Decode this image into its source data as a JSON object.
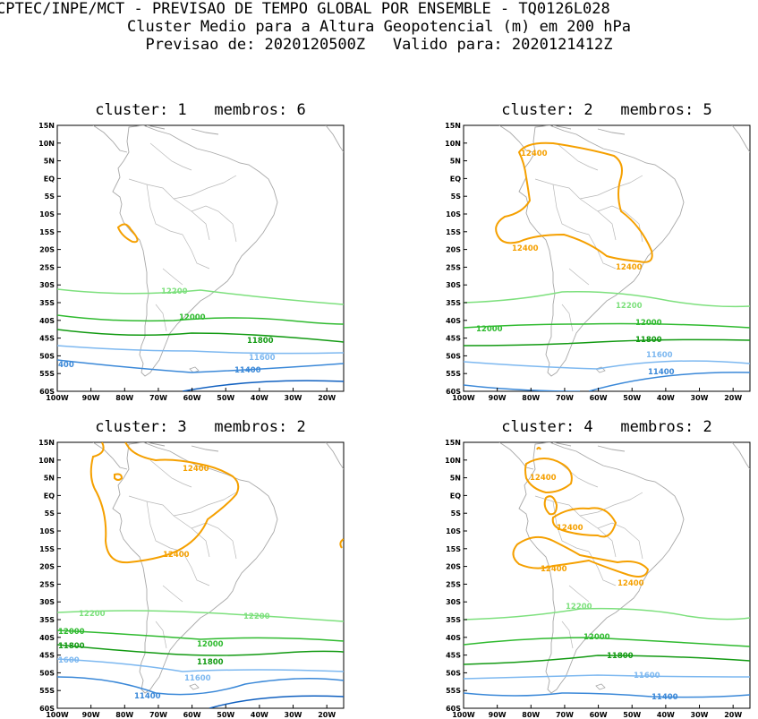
{
  "header": {
    "line1": "CPTEC/INPE/MCT - PREVISAO DE TEMPO GLOBAL POR ENSEMBLE - TQ0126L028",
    "line2": "Cluster Medio para a Altura Geopotencial (m) em 200 hPa",
    "line3": "Previsao de: 2020120500Z   Valido para: 2020121412Z"
  },
  "axes": {
    "lat_labels": [
      "15N",
      "10N",
      "5N",
      "EQ",
      "5S",
      "10S",
      "15S",
      "20S",
      "25S",
      "30S",
      "35S",
      "40S",
      "45S",
      "50S",
      "55S",
      "60S"
    ],
    "lon_labels": [
      "100W",
      "90W",
      "80W",
      "70W",
      "60W",
      "50W",
      "40W",
      "30W",
      "20W"
    ]
  },
  "colors": {
    "c12400": "#f5a000",
    "c12200": "#7de07d",
    "c12000": "#2fba2f",
    "c11800": "#129a12",
    "c11600": "#7db8f0",
    "c11400": "#3a88d8",
    "c11200": "#1060c0",
    "coast": "#a8a8a8"
  },
  "panels": [
    {
      "title": "cluster: 1   membros: 6",
      "labels": {
        "l12200": "12200",
        "l12000": "12000",
        "l11800": "11800",
        "l11600": "11600",
        "l11400": "11400",
        "lleft": "400"
      }
    },
    {
      "title": "cluster: 2   membros: 5",
      "labels": {
        "a": "12400",
        "b": "12400",
        "c": "12400",
        "l12200": "12200",
        "l12000a": "12000",
        "l12000b": "12000",
        "l11800": "11800",
        "l11600": "11600",
        "l11400": "11400"
      }
    },
    {
      "title": "cluster: 3   membros: 2",
      "labels": {
        "a": "12400",
        "b": "12400",
        "l12200a": "12200",
        "l12200b": "12200",
        "l12000a": "12000",
        "l12000b": "12000",
        "l11800a": "11800",
        "l11800b": "11800",
        "l11600a": "1600",
        "l11600b": "11600",
        "l11400": "11400"
      }
    },
    {
      "title": "cluster: 4   membros: 2",
      "labels": {
        "a": "12400",
        "b": "12400",
        "c": "12400",
        "d": "12400",
        "l12200": "12200",
        "l12000": "12000",
        "l11800": "11800",
        "l11600": "11600",
        "l11400": "11400"
      }
    }
  ]
}
